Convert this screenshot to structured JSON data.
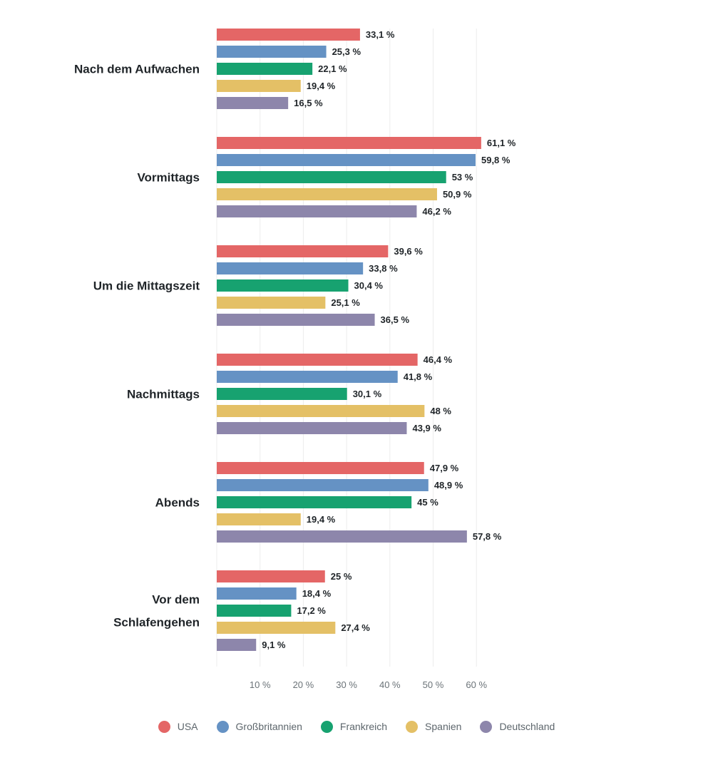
{
  "chart_data": {
    "type": "bar",
    "orientation": "horizontal",
    "categories": [
      [
        "Nach dem Aufwachen"
      ],
      [
        "Vormittags"
      ],
      [
        "Um die Mittagszeit"
      ],
      [
        "Nachmittags"
      ],
      [
        "Abends"
      ],
      [
        "Vor dem",
        "Schlafengehen"
      ]
    ],
    "series": [
      {
        "name": "USA",
        "color": "#e46666",
        "values": [
          33.1,
          61.1,
          39.6,
          46.4,
          47.9,
          25
        ],
        "labels": [
          "33,1 %",
          "61,1 %",
          "39,6 %",
          "46,4 %",
          "47,9 %",
          "25 %"
        ]
      },
      {
        "name": "Großbritannien",
        "color": "#6592c4",
        "values": [
          25.3,
          59.8,
          33.8,
          41.8,
          48.9,
          18.4
        ],
        "labels": [
          "25,3 %",
          "59,8 %",
          "33,8 %",
          "41,8 %",
          "48,9 %",
          "18,4 %"
        ]
      },
      {
        "name": "Frankreich",
        "color": "#17a270",
        "values": [
          22.1,
          53,
          30.4,
          30.1,
          45,
          17.2
        ],
        "labels": [
          "22,1 %",
          "53 %",
          "30,4 %",
          "30,1 %",
          "45 %",
          "17,2 %"
        ]
      },
      {
        "name": "Spanien",
        "color": "#e4c066",
        "values": [
          19.4,
          50.9,
          25.1,
          48,
          19.4,
          27.4
        ],
        "labels": [
          "19,4 %",
          "50,9 %",
          "25,1 %",
          "48 %",
          "19,4 %",
          "27,4 %"
        ]
      },
      {
        "name": "Deutschland",
        "color": "#8d86ab",
        "values": [
          16.5,
          46.2,
          36.5,
          43.9,
          57.8,
          9.1
        ],
        "labels": [
          "16,5 %",
          "46,2 %",
          "36,5 %",
          "43,9 %",
          "57,8 %",
          "9,1 %"
        ]
      }
    ],
    "xlim": [
      0,
      60
    ],
    "xticks": [
      10,
      20,
      30,
      40,
      50,
      60
    ],
    "xtick_labels": [
      "10 %",
      "20 %",
      "30 %",
      "40 %",
      "50 %",
      "60 %"
    ],
    "grid": true,
    "legend_position": "bottom",
    "title": "",
    "xlabel": "",
    "ylabel": ""
  }
}
